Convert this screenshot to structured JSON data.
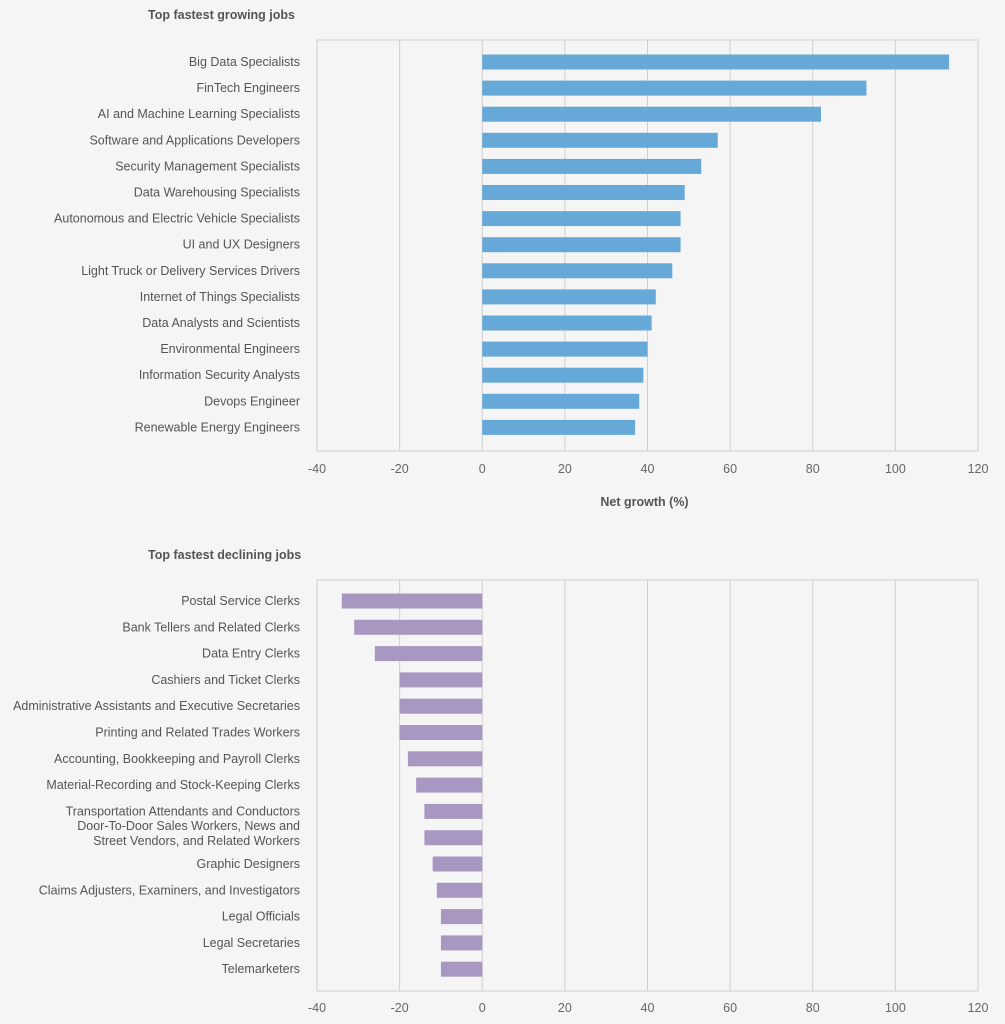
{
  "chart_data": [
    {
      "type": "bar",
      "orientation": "horizontal",
      "title": "Top fastest growing jobs",
      "xlabel": "Net growth (%)",
      "ylabel": "",
      "xlim": [
        -40,
        120
      ],
      "xticks": [
        -40,
        -20,
        0,
        20,
        40,
        60,
        80,
        100,
        120
      ],
      "grid": true,
      "color": "#66a8d8",
      "categories": [
        "Big Data Specialists",
        "FinTech Engineers",
        "AI and Machine Learning Specialists",
        "Software and Applications Developers",
        "Security Management Specialists",
        "Data Warehousing Specialists",
        "Autonomous and Electric Vehicle Specialists",
        "UI and UX Designers",
        "Light Truck or Delivery Services Drivers",
        "Internet of Things Specialists",
        "Data Analysts and Scientists",
        "Environmental Engineers",
        "Information Security Analysts",
        "Devops Engineer",
        "Renewable Energy Engineers"
      ],
      "values": [
        113,
        93,
        82,
        57,
        53,
        49,
        48,
        48,
        46,
        42,
        41,
        40,
        39,
        38,
        37
      ]
    },
    {
      "type": "bar",
      "orientation": "horizontal",
      "title": "Top fastest declining jobs",
      "xlabel": "",
      "ylabel": "",
      "xlim": [
        -40,
        120
      ],
      "xticks": [
        -40,
        -20,
        0,
        20,
        40,
        60,
        80,
        100,
        120
      ],
      "grid": true,
      "color": "#a897c0",
      "categories": [
        "Postal Service Clerks",
        "Bank Tellers and Related Clerks",
        "Data Entry Clerks",
        "Cashiers and Ticket Clerks",
        "Administrative Assistants and Executive Secretaries",
        "Printing and Related Trades Workers",
        "Accounting, Bookkeeping and Payroll Clerks",
        "Material-Recording and Stock-Keeping Clerks",
        "Transportation Attendants and Conductors",
        "Door-To-Door Sales Workers, News and|Street Vendors, and Related Workers",
        "Graphic Designers",
        "Claims Adjusters, Examiners, and Investigators",
        "Legal Officials",
        "Legal Secretaries",
        "Telemarketers"
      ],
      "values": [
        -34,
        -31,
        -26,
        -20,
        -20,
        -20,
        -18,
        -16,
        -14,
        -14,
        -12,
        -11,
        -10,
        -10,
        -10
      ]
    }
  ]
}
